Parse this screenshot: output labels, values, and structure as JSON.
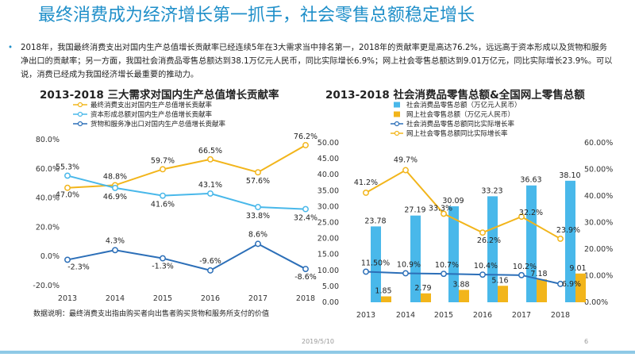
{
  "page": {
    "title": "最终消费成为经济增长第一抓手，社会零售总额稳定增长",
    "paragraph": "2018年，我国最终消费支出对国内生产总值增长贡献率已经连续5年在3大需求当中排名第一，2018年的贡献率更是高达76.2%，远远高于资本形成以及货物和服务净出口的贡献率；另一方面，我国社会消费品零售总额达到38.1万亿元人民币，同比实际增长6.9%；网上社会零售总额达到9.01万亿元，同比实际增长23.9%。可以说，消费已经成为我国经济增长最重要的推动力。",
    "note": "数据说明：最终消费支出指由购买者向出售者购买货物和服务所支付的价值",
    "date": "2019/5/10",
    "page_number": "6",
    "colors": {
      "title": "#1f8fc9",
      "orange": "#f2b51b",
      "lightblue": "#49b8ea",
      "darkblue": "#2c6fb8"
    }
  },
  "chart_data": [
    {
      "type": "line",
      "title": "2013-2018 三大需求对国内生产总值增长贡献率",
      "x": [
        "2013",
        "2014",
        "2015",
        "2016",
        "2017",
        "2018"
      ],
      "ylim": [
        -20,
        80
      ],
      "yticks": [
        "80.0%",
        "60.0%",
        "40.0%",
        "20.0%",
        "0.0%",
        "-20.0%"
      ],
      "legend_position": "top",
      "grid": false,
      "series": [
        {
          "name": "最终消费支出对国内生产总值增长贡献率",
          "color": "#f2b51b",
          "values": [
            47.0,
            48.8,
            59.7,
            66.5,
            57.6,
            76.2
          ],
          "labels": [
            "47.0%",
            "48.8%",
            "59.7%",
            "66.5%",
            "57.6%",
            "76.2%"
          ]
        },
        {
          "name": "资本形成总额对国内生产总值增长贡献率",
          "color": "#49b8ea",
          "values": [
            55.3,
            46.9,
            41.6,
            43.1,
            33.8,
            32.4
          ],
          "labels": [
            "55.3%",
            "46.9%",
            "41.6%",
            "43.1%",
            "33.8%",
            "32.4%"
          ]
        },
        {
          "name": "货物和服务净出口对国内生产总值增长贡献率",
          "color": "#2c6fb8",
          "values": [
            -2.3,
            4.3,
            -1.3,
            -9.6,
            8.6,
            -8.6
          ],
          "labels": [
            "-2.3%",
            "4.3%",
            "-1.3%",
            "-9.6%",
            "8.6%",
            "-8.6%"
          ]
        }
      ]
    },
    {
      "type": "bar",
      "title": "2013-2018 社会消费品零售总额&全国网上零售总额",
      "x": [
        "2013",
        "2014",
        "2015",
        "2016",
        "2017",
        "2018"
      ],
      "ylim_left": [
        0,
        50
      ],
      "ylim_right": [
        0,
        60
      ],
      "yticks_left": [
        "50.00",
        "45.00",
        "40.00",
        "35.00",
        "30.00",
        "25.00",
        "20.00",
        "15.00",
        "10.00",
        "5.00",
        "0.00"
      ],
      "yticks_right": [
        "60.00%",
        "50.00%",
        "40.00%",
        "30.00%",
        "20.00%",
        "10.00%",
        "0.00%"
      ],
      "legend_position": "top",
      "grid": false,
      "bars": [
        {
          "name": "社会消费品零售总额（万亿元人民币）",
          "color": "#49b8ea",
          "values": [
            23.78,
            27.19,
            30.09,
            33.23,
            36.63,
            38.1
          ],
          "labels": [
            "23.78",
            "27.19",
            "30.09",
            "33.23",
            "36.63",
            "38.10"
          ]
        },
        {
          "name": "网上社会零售总额（万亿元人民币）",
          "color": "#f2b51b",
          "values": [
            1.85,
            2.79,
            3.88,
            5.16,
            7.18,
            9.01
          ],
          "labels": [
            "1.85",
            "2.79",
            "3.88",
            "5.16",
            "7.18",
            "9.01"
          ]
        }
      ],
      "lines": [
        {
          "name": "社会消费品零售总额同比实际增长率",
          "color": "#2c6fb8",
          "values": [
            11.5,
            10.9,
            10.7,
            10.4,
            10.2,
            6.9
          ],
          "labels": [
            "11.50%",
            "10.9%",
            "10.7%",
            "10.4%",
            "10.2%",
            "6.9%"
          ]
        },
        {
          "name": "网上社会零售总额同比实际增长率",
          "color": "#f2b51b",
          "values": [
            41.2,
            49.7,
            33.3,
            26.2,
            32.2,
            23.9
          ],
          "labels": [
            "41.2%",
            "49.7%",
            "33.3%",
            "26.2%",
            "32.2%",
            "23.9%"
          ]
        }
      ]
    }
  ]
}
